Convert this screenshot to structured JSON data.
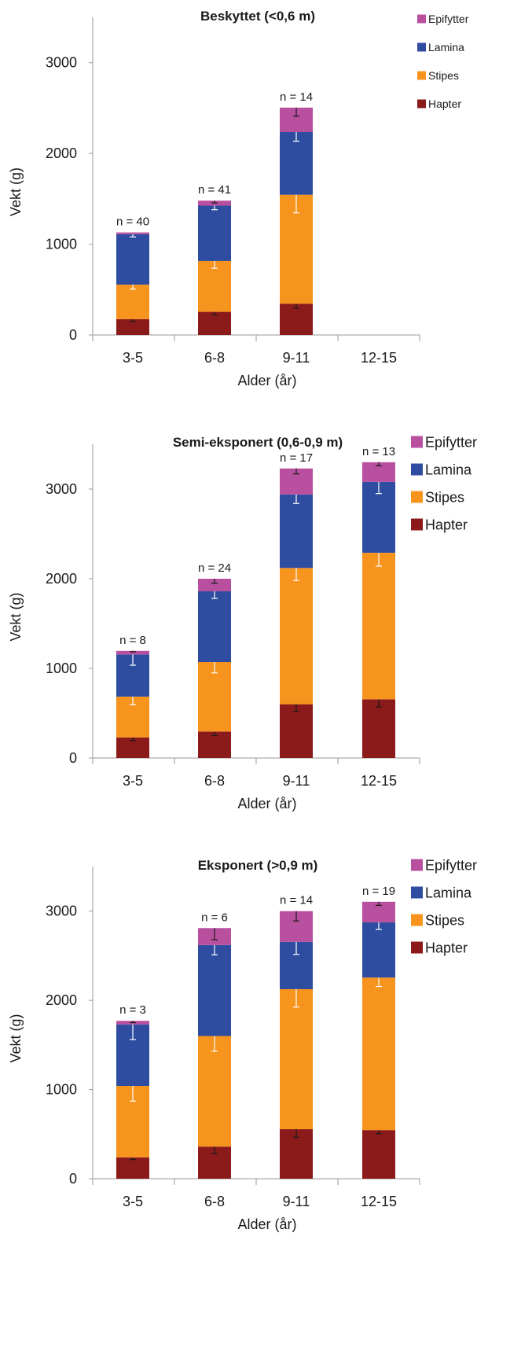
{
  "colors": {
    "Hapter": "#8b1a1a",
    "Stipes": "#f7941d",
    "Lamina": "#2e4da0",
    "Epifytter": "#b94f9f",
    "axis": "#9a9a9a",
    "error_bar_light": "#ffffff",
    "error_bar_dark": "#1a1a1a"
  },
  "chart_data": [
    {
      "type": "bar",
      "stacked": true,
      "title": "Beskyttet (<0,6 m)",
      "xlabel": "Alder (år)",
      "ylabel": "Vekt (g)",
      "ylim": [
        0,
        3500
      ],
      "yticks": [
        "0",
        "1000",
        "2000",
        "3000"
      ],
      "categories": [
        "3-5",
        "6-8",
        "9-11",
        "12-15"
      ],
      "n_labels": [
        "n = 40",
        "n = 41",
        "n = 14",
        ""
      ],
      "legend": [
        "Epifytter",
        "Lamina",
        "Stipes",
        "Hapter"
      ],
      "legend_position": "top-right",
      "series": [
        {
          "name": "Hapter",
          "values": [
            175,
            255,
            345,
            0
          ],
          "errors": [
            25,
            35,
            50,
            0
          ]
        },
        {
          "name": "Stipes",
          "values": [
            380,
            560,
            1200,
            0
          ],
          "errors": [
            50,
            80,
            200,
            0
          ]
        },
        {
          "name": "Lamina",
          "values": [
            555,
            610,
            690,
            0
          ],
          "errors": [
            30,
            45,
            100,
            0
          ]
        },
        {
          "name": "Epifytter",
          "values": [
            20,
            55,
            270,
            0
          ],
          "errors": [
            0,
            25,
            95,
            0
          ]
        }
      ]
    },
    {
      "type": "bar",
      "stacked": true,
      "title": "Semi-eksponert (0,6-0,9 m)",
      "xlabel": "Alder (år)",
      "ylabel": "Vekt (g)",
      "ylim": [
        0,
        3500
      ],
      "yticks": [
        "0",
        "1000",
        "2000",
        "3000"
      ],
      "categories": [
        "3-5",
        "6-8",
        "9-11",
        "12-15"
      ],
      "n_labels": [
        "n = 8",
        "n = 24",
        "n = 17",
        "n = 13"
      ],
      "legend": [
        "Epifytter",
        "Lamina",
        "Stipes",
        "Hapter"
      ],
      "legend_position": "top-right",
      "series": [
        {
          "name": "Hapter",
          "values": [
            230,
            295,
            600,
            655
          ],
          "errors": [
            35,
            45,
            80,
            85
          ]
        },
        {
          "name": "Stipes",
          "values": [
            455,
            775,
            1520,
            1635
          ],
          "errors": [
            90,
            120,
            140,
            150
          ]
        },
        {
          "name": "Lamina",
          "values": [
            470,
            790,
            820,
            790
          ],
          "errors": [
            120,
            80,
            100,
            130
          ]
        },
        {
          "name": "Epifytter",
          "values": [
            40,
            140,
            290,
            220
          ],
          "errors": [
            10,
            50,
            60,
            40
          ]
        }
      ]
    },
    {
      "type": "bar",
      "stacked": true,
      "title": "Eksponert (>0,9 m)",
      "xlabel": "Alder (år)",
      "ylabel": "Vekt (g)",
      "ylim": [
        0,
        3500
      ],
      "yticks": [
        "0",
        "1000",
        "2000",
        "3000"
      ],
      "categories": [
        "3-5",
        "6-8",
        "9-11",
        "12-15"
      ],
      "n_labels": [
        "n = 3",
        "n = 6",
        "n = 14",
        "n = 19"
      ],
      "legend": [
        "Epifytter",
        "Lamina",
        "Stipes",
        "Hapter"
      ],
      "legend_position": "top-right",
      "series": [
        {
          "name": "Hapter",
          "values": [
            240,
            360,
            555,
            545
          ],
          "errors": [
            25,
            75,
            90,
            40
          ]
        },
        {
          "name": "Stipes",
          "values": [
            800,
            1240,
            1570,
            1710
          ],
          "errors": [
            170,
            170,
            200,
            100
          ]
        },
        {
          "name": "Lamina",
          "values": [
            690,
            1020,
            530,
            620
          ],
          "errors": [
            170,
            110,
            140,
            80
          ]
        },
        {
          "name": "Epifytter",
          "values": [
            40,
            190,
            345,
            230
          ],
          "errors": [
            20,
            130,
            110,
            40
          ]
        }
      ]
    }
  ]
}
